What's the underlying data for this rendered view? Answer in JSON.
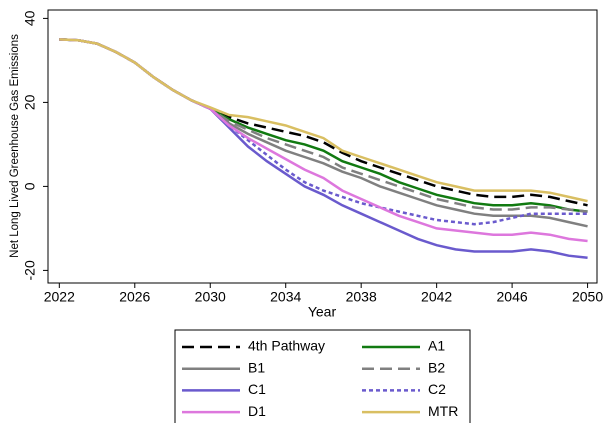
{
  "chart_data": {
    "type": "line",
    "xlabel": "Year",
    "ylabel": "Net Long Lived Greenhouse Gas Emissions",
    "x": [
      2022,
      2023,
      2024,
      2025,
      2026,
      2027,
      2028,
      2029,
      2030,
      2031,
      2032,
      2033,
      2034,
      2035,
      2036,
      2037,
      2038,
      2039,
      2040,
      2041,
      2042,
      2043,
      2044,
      2045,
      2046,
      2047,
      2048,
      2049,
      2050
    ],
    "xlim": [
      2021.4,
      2050.5
    ],
    "xticks": [
      2022,
      2026,
      2030,
      2034,
      2038,
      2042,
      2046,
      2050
    ],
    "ylim": [
      -23,
      42
    ],
    "yticks": [
      -20,
      0,
      20,
      40
    ],
    "grid": false,
    "legend": "bottom",
    "series": [
      {
        "name": "4th Pathway",
        "color": "#000000",
        "dash": "dashed",
        "values": [
          35,
          34.8,
          34,
          32,
          29.5,
          26,
          23,
          20.5,
          18.5,
          16.5,
          15,
          14,
          13,
          12,
          10.5,
          8,
          6,
          4.5,
          3,
          1.5,
          0,
          -1,
          -2,
          -2.5,
          -2.5,
          -2,
          -2.5,
          -3.5,
          -4.5
        ]
      },
      {
        "name": "A1",
        "color": "#117a11",
        "dash": "solid",
        "values": [
          35,
          34.8,
          34,
          32,
          29.5,
          26,
          23,
          20.5,
          18.5,
          16,
          14,
          12.5,
          11,
          10,
          8.5,
          6,
          4.5,
          3,
          1,
          -0.5,
          -2,
          -3,
          -4,
          -4.5,
          -4.5,
          -4,
          -4.5,
          -5.5,
          -6
        ]
      },
      {
        "name": "B1",
        "color": "#808080",
        "dash": "solid",
        "values": [
          35,
          34.8,
          34,
          32,
          29.5,
          26,
          23,
          20.5,
          18.5,
          15,
          12.5,
          10.5,
          8.5,
          7,
          5.5,
          3.5,
          2,
          0,
          -1.5,
          -3,
          -4.5,
          -5.5,
          -6.5,
          -7,
          -7,
          -7,
          -7.5,
          -8.5,
          -9.5
        ]
      },
      {
        "name": "B2",
        "color": "#808080",
        "dash": "dashed",
        "values": [
          35,
          34.8,
          34,
          32,
          29.5,
          26,
          23,
          20.5,
          18.5,
          15.5,
          13.5,
          11.5,
          10,
          8.5,
          7,
          4.5,
          3,
          1.5,
          0,
          -1.5,
          -3,
          -4,
          -5,
          -5.5,
          -5.5,
          -5,
          -5,
          -5.5,
          -6
        ]
      },
      {
        "name": "C1",
        "color": "#6a5acd",
        "dash": "solid",
        "values": [
          35,
          34.8,
          34,
          32,
          29.5,
          26,
          23,
          20.5,
          18.5,
          14,
          9.5,
          6,
          3,
          0,
          -2,
          -4.5,
          -6.5,
          -8.5,
          -10.5,
          -12.5,
          -14,
          -15,
          -15.5,
          -15.5,
          -15.5,
          -15,
          -15.5,
          -16.5,
          -17
        ]
      },
      {
        "name": "C2",
        "color": "#6a5acd",
        "dash": "dotted",
        "values": [
          35,
          34.8,
          34,
          32,
          29.5,
          26,
          23,
          20.5,
          18.5,
          14.5,
          11,
          7.5,
          4,
          1,
          -1,
          -2.5,
          -4,
          -5,
          -6,
          -7,
          -8,
          -8.5,
          -9,
          -8.5,
          -7.5,
          -6.5,
          -6.5,
          -6.5,
          -6.5
        ]
      },
      {
        "name": "D1",
        "color": "#dd77dd",
        "dash": "solid",
        "values": [
          35,
          34.8,
          34,
          32,
          29.5,
          26,
          23,
          20.5,
          18.5,
          14.5,
          11.5,
          9,
          6.5,
          4,
          2,
          -1,
          -3,
          -5,
          -7,
          -8.5,
          -10,
          -10.5,
          -11,
          -11.5,
          -11.5,
          -11,
          -11.5,
          -12.5,
          -13
        ]
      },
      {
        "name": "MTR",
        "color": "#d9bf62",
        "dash": "solid",
        "values": [
          35,
          34.8,
          34,
          32,
          29.5,
          26,
          23,
          20.5,
          18.8,
          17,
          16.5,
          15.5,
          14.5,
          13,
          11.5,
          8.5,
          7,
          5.5,
          4,
          2.5,
          1,
          0,
          -1,
          -1,
          -1,
          -1,
          -1.5,
          -2.5,
          -3.5
        ]
      }
    ]
  }
}
